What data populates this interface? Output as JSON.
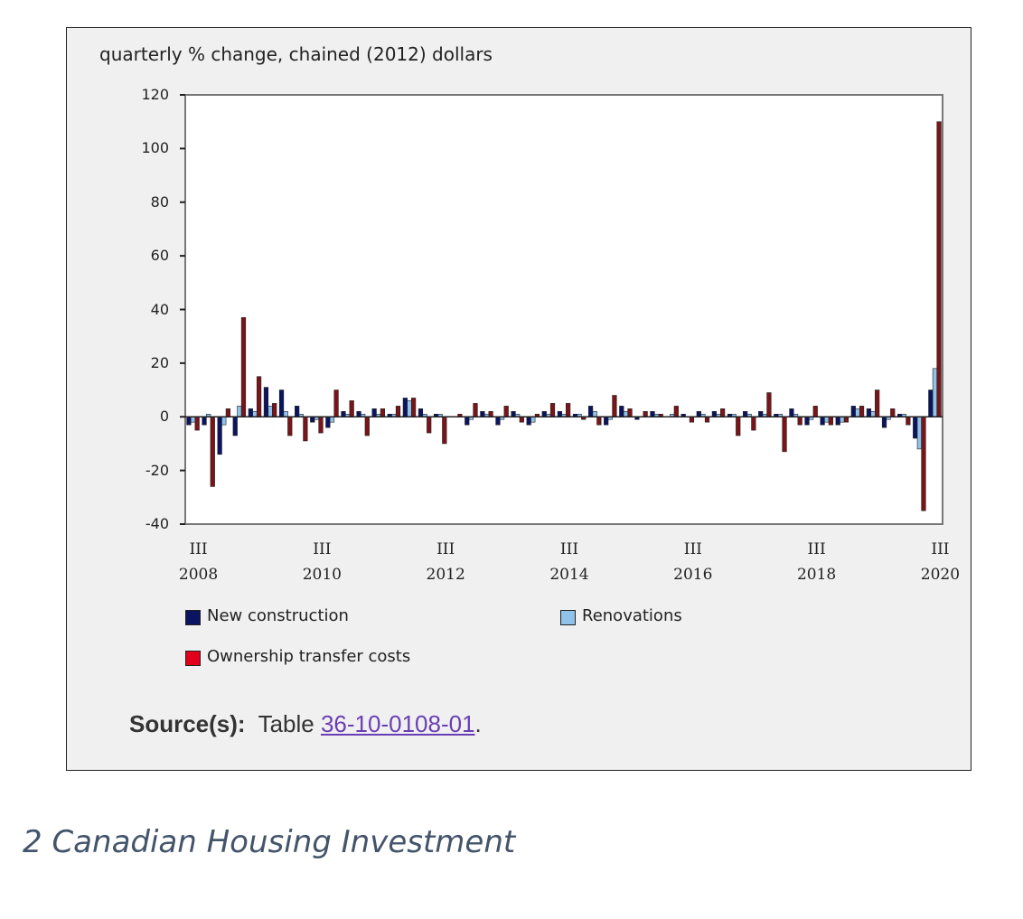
{
  "chart_data": {
    "type": "bar",
    "title": "quarterly % change, chained (2012) dollars",
    "categories": [
      "III\n2008",
      null,
      null,
      null,
      null,
      null,
      null,
      null,
      "III\n2010",
      null,
      null,
      null,
      null,
      null,
      null,
      null,
      "III\n2012",
      null,
      null,
      null,
      null,
      null,
      null,
      null,
      "III\n2014",
      null,
      null,
      null,
      null,
      null,
      null,
      null,
      "III\n2016",
      null,
      null,
      null,
      null,
      null,
      null,
      null,
      "III\n2018",
      null,
      null,
      null,
      null,
      null,
      null,
      null,
      "III\n2020"
    ],
    "series": [
      {
        "name": "New construction",
        "color": "#0b1460",
        "values": [
          -3,
          -3,
          -14,
          -7,
          3,
          11,
          10,
          4,
          -2,
          -4,
          2,
          2,
          3,
          1,
          7,
          3,
          1,
          0,
          -3,
          2,
          -3,
          2,
          -3,
          2,
          2,
          1,
          4,
          -3,
          4,
          -1,
          2,
          0,
          1,
          2,
          2,
          1,
          2,
          2,
          1,
          3,
          -3,
          -3,
          -3,
          4,
          3,
          -4,
          1,
          -8,
          10
        ]
      },
      {
        "name": "Renovations",
        "color": "#8fc3ea",
        "values": [
          -2,
          1,
          -3,
          4,
          2,
          4,
          2,
          1,
          -1,
          -2,
          1,
          1,
          1,
          1,
          6,
          1,
          1,
          0,
          -1,
          1,
          -1,
          1,
          -2,
          1,
          1,
          1,
          2,
          -1,
          2,
          0,
          1,
          1,
          0,
          1,
          1,
          1,
          1,
          1,
          1,
          1,
          -1,
          -2,
          -2,
          3,
          2,
          -1,
          1,
          -12,
          18
        ]
      },
      {
        "name": "Ownership transfer costs",
        "color": "#7a1418",
        "values": [
          -5,
          -26,
          3,
          37,
          15,
          5,
          -7,
          -9,
          -6,
          10,
          6,
          -7,
          3,
          4,
          7,
          -6,
          -10,
          1,
          5,
          2,
          4,
          -2,
          1,
          5,
          5,
          -1,
          -3,
          8,
          3,
          2,
          1,
          4,
          -2,
          -2,
          3,
          -7,
          -5,
          9,
          -13,
          -3,
          4,
          -3,
          -2,
          4,
          10,
          3,
          -3,
          -35,
          110
        ]
      }
    ],
    "legend_colors": [
      "#0b1460",
      "#8fc3ea",
      "#e3001b"
    ],
    "ylim": [
      -40,
      120
    ],
    "yticks": [
      -40,
      -20,
      0,
      20,
      40,
      60,
      80,
      100,
      120
    ],
    "source": {
      "label": "Source(s):",
      "text": "Table",
      "link": "36-10-0108-01",
      "end": "."
    },
    "caption": "2 Canadian Housing Investment"
  }
}
